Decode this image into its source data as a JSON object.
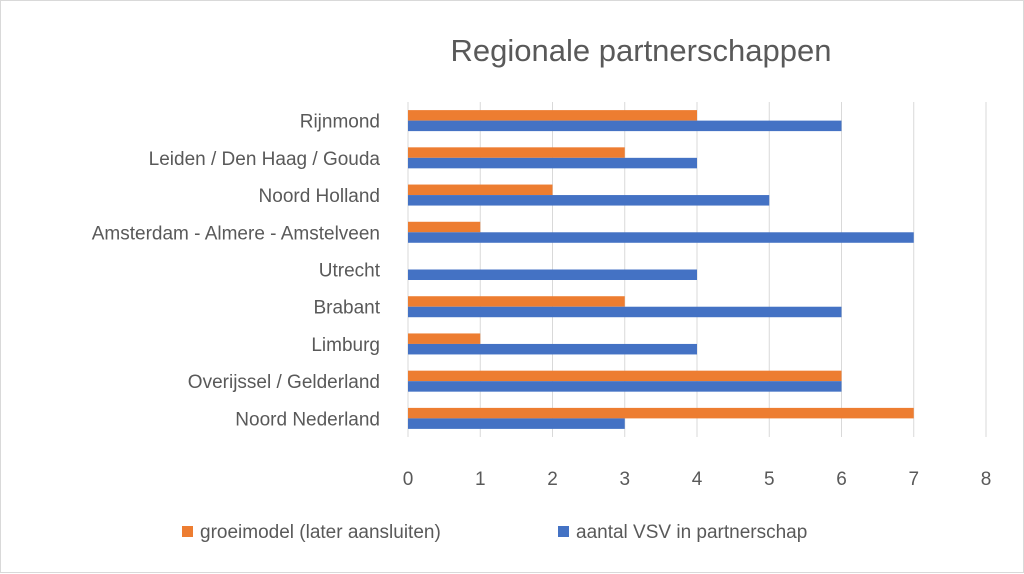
{
  "chart_data": {
    "type": "bar",
    "orientation": "horizontal",
    "title": "Regionale partnerschappen",
    "categories": [
      "Rijnmond",
      "Leiden / Den Haag / Gouda",
      "Noord Holland",
      "Amsterdam - Almere - Amstelveen",
      "Utrecht",
      "Brabant",
      "Limburg",
      "Overijssel / Gelderland",
      "Noord Nederland"
    ],
    "series": [
      {
        "name": "groeimodel (later aansluiten)",
        "color": "#ed7d31",
        "values": [
          4,
          3,
          2,
          1,
          0,
          3,
          1,
          6,
          7
        ]
      },
      {
        "name": "aantal VSV in partnerschap",
        "color": "#4472c4",
        "values": [
          6,
          4,
          5,
          7,
          4,
          6,
          4,
          6,
          3
        ]
      }
    ],
    "xlim": [
      0,
      8
    ],
    "xticks": [
      "0",
      "1",
      "2",
      "3",
      "4",
      "5",
      "6",
      "7",
      "8"
    ],
    "grid": true,
    "legend_position": "bottom"
  }
}
